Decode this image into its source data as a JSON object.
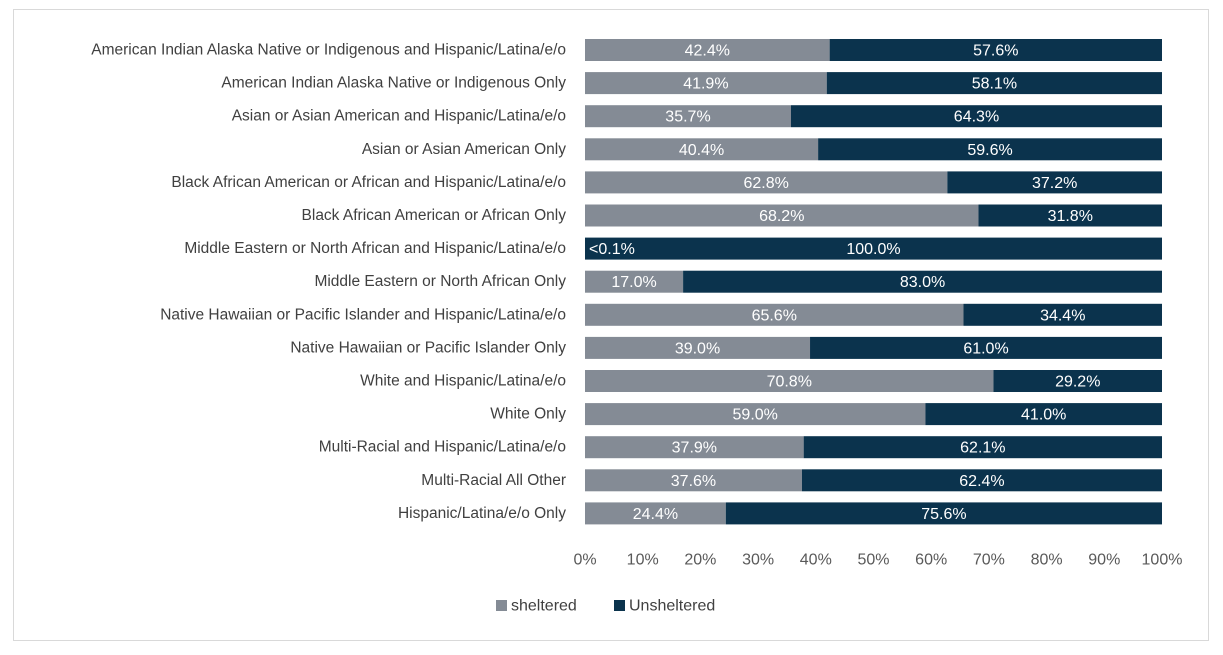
{
  "chart_data": {
    "type": "bar",
    "orientation": "horizontal",
    "stacked": "percent",
    "categories": [
      "American Indian Alaska Native or Indigenous and Hispanic/Latina/e/o",
      "American Indian Alaska Native or Indigenous Only",
      "Asian or Asian American and Hispanic/Latina/e/o",
      "Asian or Asian American Only",
      "Black African American or African and Hispanic/Latina/e/o",
      "Black African American or African Only",
      "Middle Eastern or North African and Hispanic/Latina/e/o",
      "Middle Eastern or North African Only",
      "Native Hawaiian or Pacific Islander and Hispanic/Latina/e/o",
      "Native Hawaiian or Pacific Islander Only",
      "White and Hispanic/Latina/e/o",
      "White Only",
      "Multi-Racial and Hispanic/Latina/e/o",
      "Multi-Racial All Other",
      "Hispanic/Latina/e/o Only"
    ],
    "series": [
      {
        "name": "sheltered",
        "color": "#848b95",
        "values": [
          42.4,
          41.9,
          35.7,
          40.4,
          62.8,
          68.2,
          0.0,
          17.0,
          65.6,
          39.0,
          70.8,
          59.0,
          37.9,
          37.6,
          24.4
        ],
        "labels": [
          "42.4%",
          "41.9%",
          "35.7%",
          "40.4%",
          "62.8%",
          "68.2%",
          "<0.1%",
          "17.0%",
          "65.6%",
          "39.0%",
          "70.8%",
          "59.0%",
          "37.9%",
          "37.6%",
          "24.4%"
        ]
      },
      {
        "name": "Unsheltered",
        "color": "#0b334d",
        "values": [
          57.6,
          58.1,
          64.3,
          59.6,
          37.2,
          31.8,
          100.0,
          83.0,
          34.4,
          61.0,
          29.2,
          41.0,
          62.1,
          62.4,
          75.6
        ],
        "labels": [
          "57.6%",
          "58.1%",
          "64.3%",
          "59.6%",
          "37.2%",
          "31.8%",
          "100.0%",
          "83.0%",
          "34.4%",
          "61.0%",
          "29.2%",
          "41.0%",
          "62.1%",
          "62.4%",
          "75.6%"
        ]
      }
    ],
    "xlim": [
      0,
      100
    ],
    "xticks": [
      "0%",
      "10%",
      "20%",
      "30%",
      "40%",
      "50%",
      "60%",
      "70%",
      "80%",
      "90%",
      "100%"
    ],
    "grid": false,
    "legend_position": "bottom-left"
  }
}
